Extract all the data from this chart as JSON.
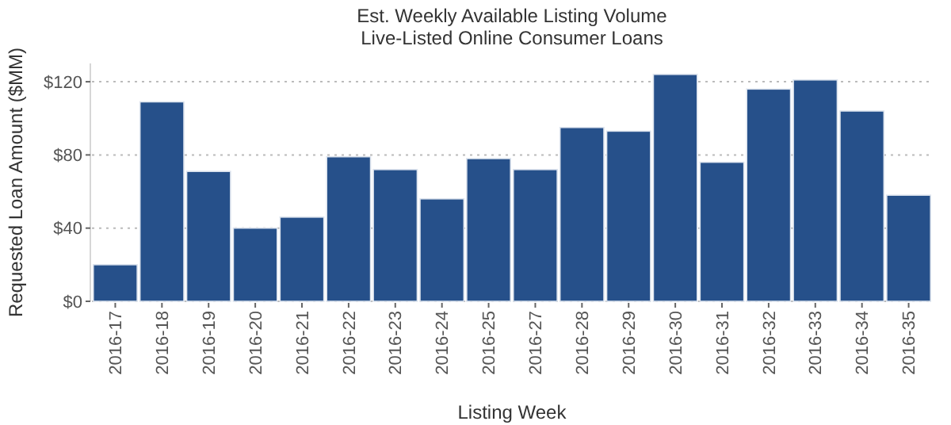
{
  "chart_data": {
    "type": "bar",
    "title": "Est. Weekly Available Listing Volume",
    "subtitle": "Live-Listed Online Consumer Loans",
    "xlabel": "Listing Week",
    "ylabel": "Requested Loan Amount ($MM)",
    "categories": [
      "2016-17",
      "2016-18",
      "2016-19",
      "2016-20",
      "2016-21",
      "2016-22",
      "2016-23",
      "2016-24",
      "2016-25",
      "2016-27",
      "2016-28",
      "2016-29",
      "2016-30",
      "2016-31",
      "2016-32",
      "2016-33",
      "2016-34",
      "2016-35"
    ],
    "values": [
      20,
      109,
      71,
      40,
      46,
      79,
      72,
      56,
      78,
      72,
      95,
      93,
      124,
      76,
      116,
      121,
      104,
      58
    ],
    "color": "#26508a",
    "ylim": [
      0,
      130
    ],
    "yticks": [
      {
        "value": 0,
        "label": "$0"
      },
      {
        "value": 40,
        "label": "$40"
      },
      {
        "value": 80,
        "label": "$80"
      },
      {
        "value": 120,
        "label": "$120"
      }
    ],
    "grid": "y"
  }
}
